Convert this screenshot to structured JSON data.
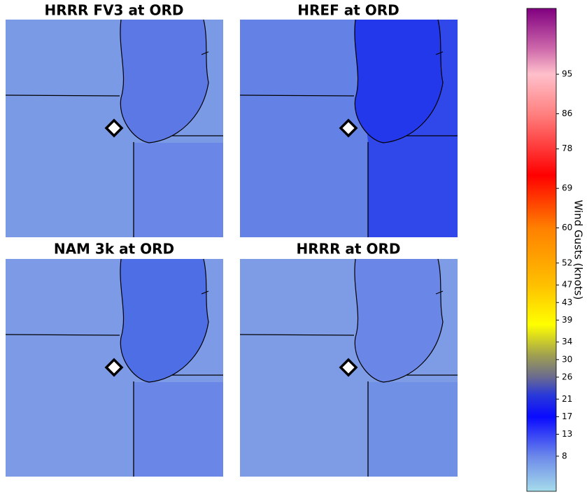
{
  "panels": [
    {
      "title": "HRRR FV3 at ORD"
    },
    {
      "title": "HREF at ORD"
    },
    {
      "title": "NAM 3k at ORD"
    },
    {
      "title": "HRRR at ORD"
    }
  ],
  "colorbar": {
    "label": "Wind Gusts (knots)",
    "lim": [
      0,
      110
    ],
    "ticks": [
      8,
      13,
      17,
      21,
      26,
      30,
      34,
      39,
      43,
      47,
      52,
      60,
      69,
      78,
      86,
      95
    ],
    "stops": [
      {
        "value": 0,
        "color": "#a6dcea"
      },
      {
        "value": 8,
        "color": "#6c88ea"
      },
      {
        "value": 17,
        "color": "#0a0aff"
      },
      {
        "value": 22,
        "color": "#2a3ad8"
      },
      {
        "value": 26,
        "color": "#6a6a90"
      },
      {
        "value": 31,
        "color": "#a0a050"
      },
      {
        "value": 38,
        "color": "#ffff00"
      },
      {
        "value": 47,
        "color": "#ffc000"
      },
      {
        "value": 60,
        "color": "#ff8000"
      },
      {
        "value": 72,
        "color": "#ff0000"
      },
      {
        "value": 86,
        "color": "#ff8080"
      },
      {
        "value": 95,
        "color": "#ffc0cb"
      },
      {
        "value": 101,
        "color": "#cc66aa"
      },
      {
        "value": 110,
        "color": "#800080"
      }
    ]
  }
}
